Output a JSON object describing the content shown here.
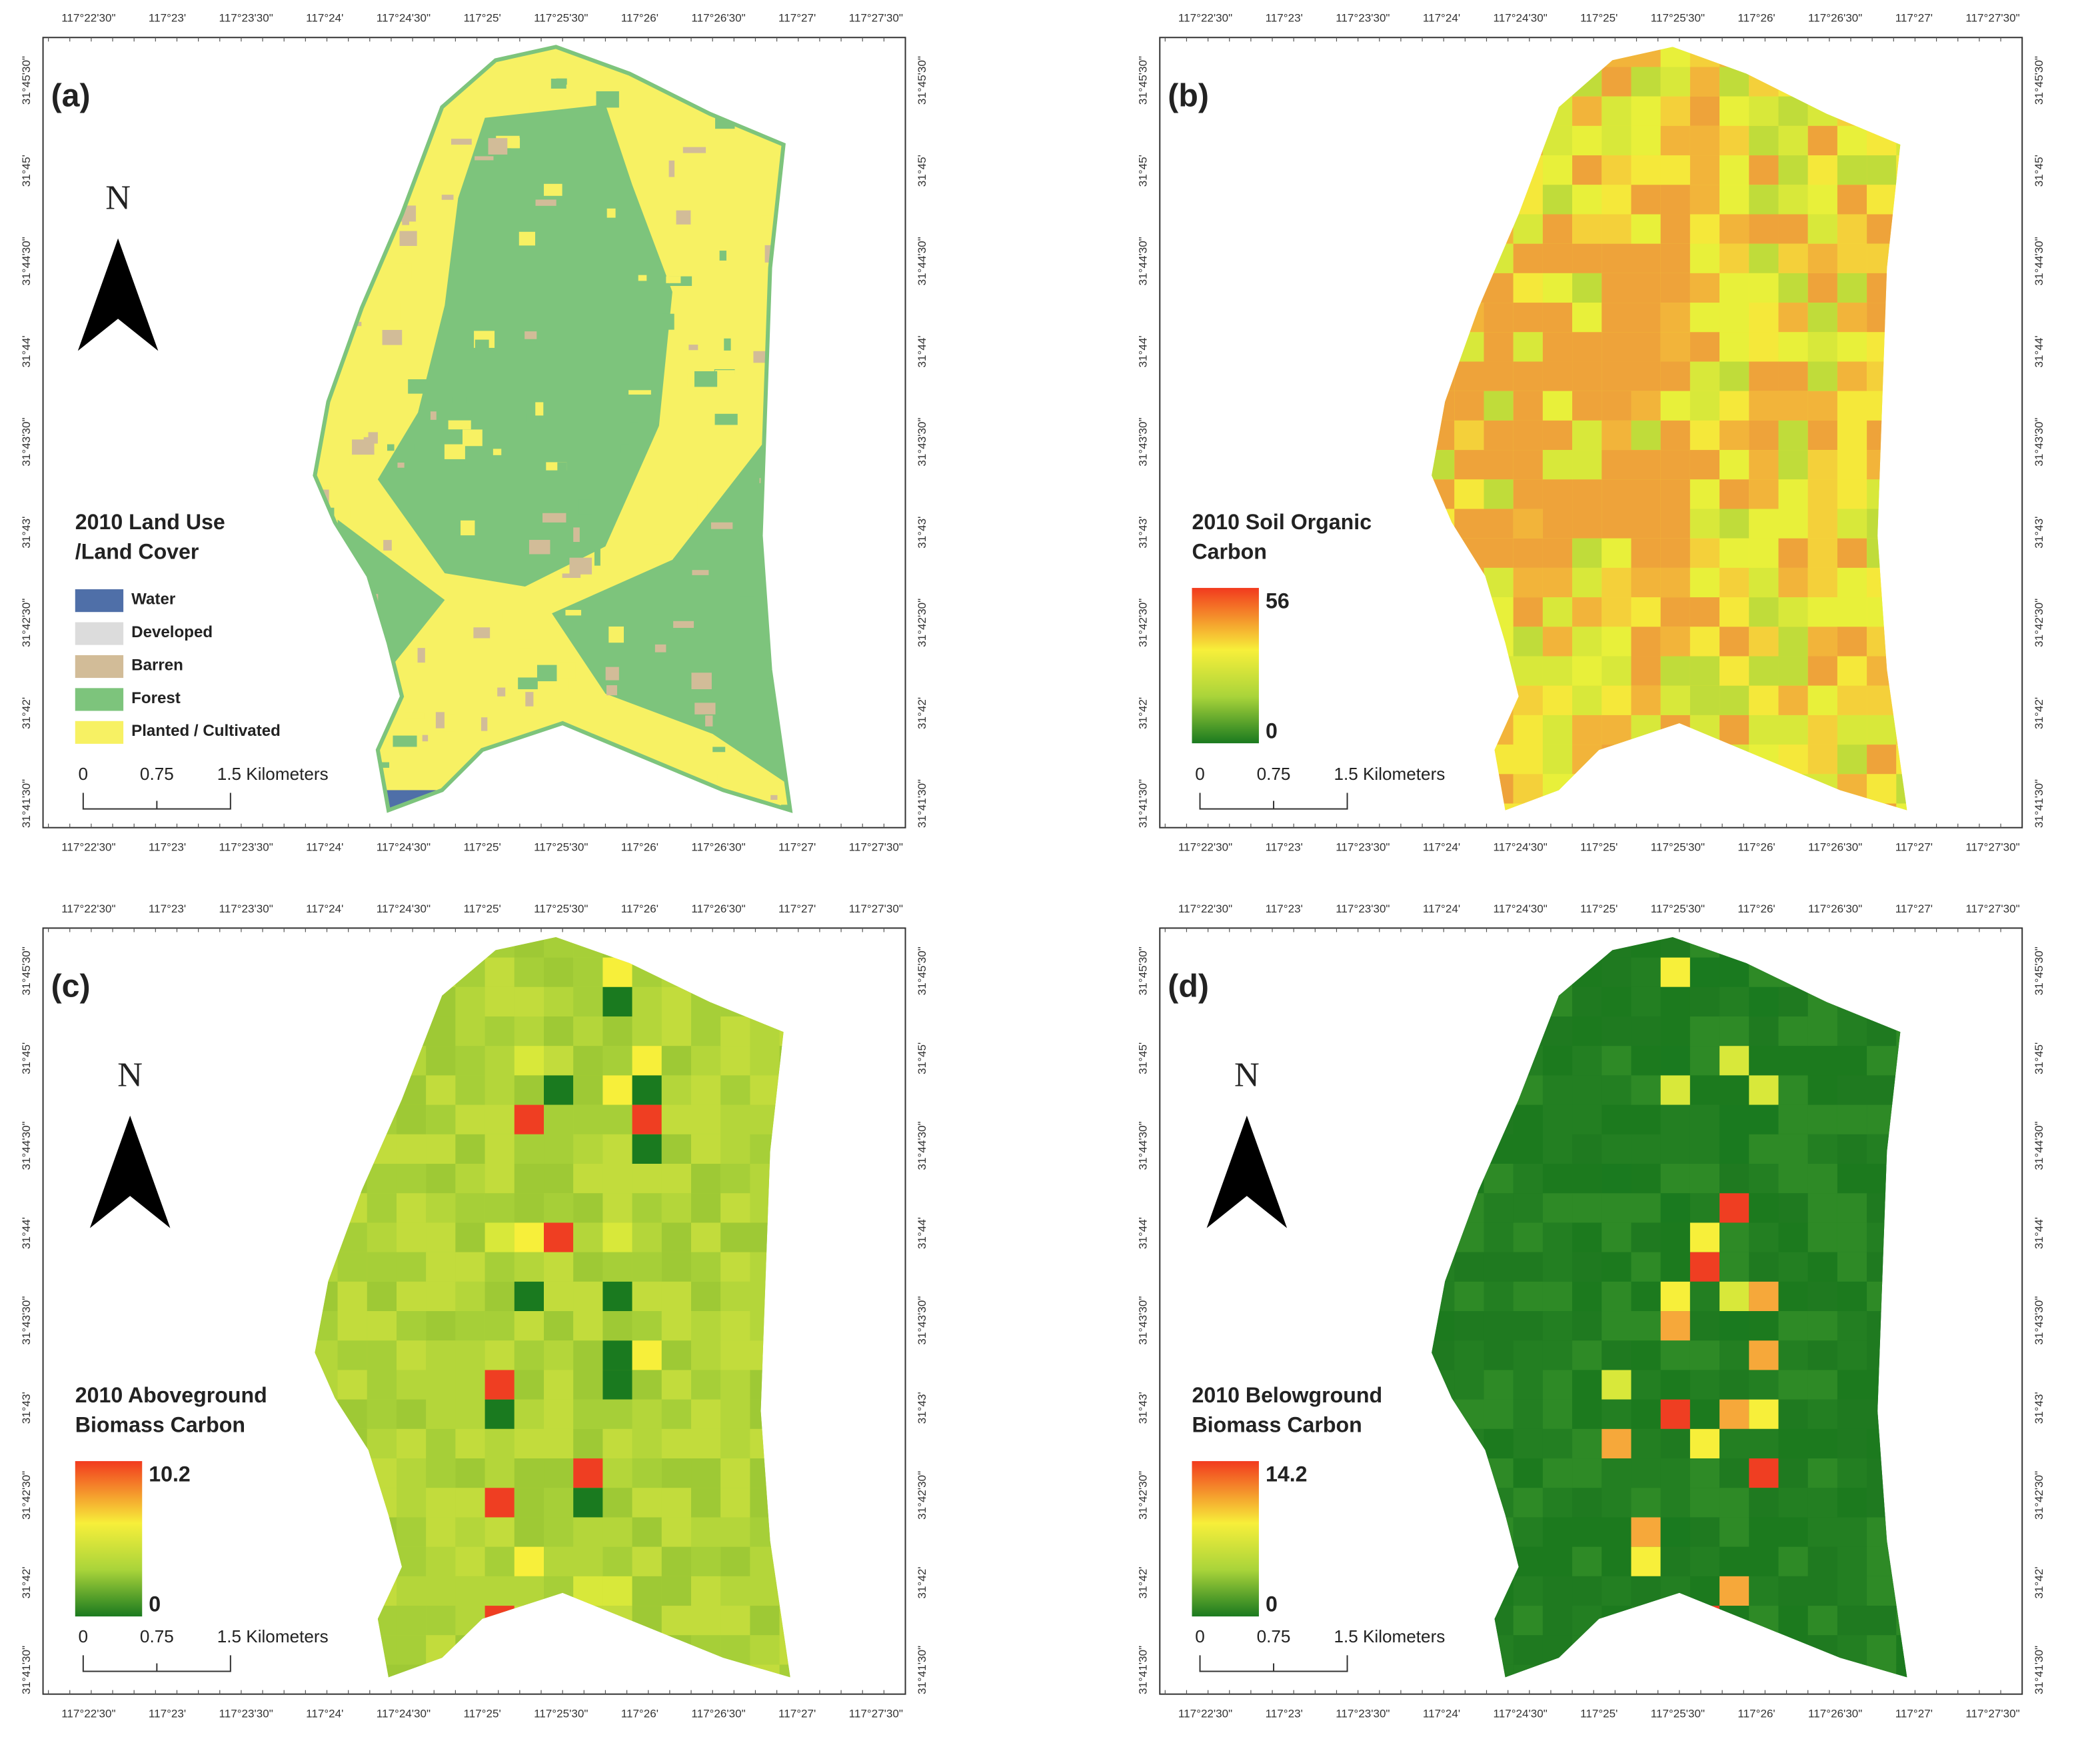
{
  "x_ticks": [
    "117°22'30\"",
    "117°23'",
    "117°23'30\"",
    "117°24'",
    "117°24'30\"",
    "117°25'",
    "117°25'30\"",
    "117°26'",
    "117°26'30\"",
    "117°27'",
    "117°27'30\""
  ],
  "y_ticks": [
    "31°45'30\"",
    "31°45'",
    "31°44'30\"",
    "31°44'",
    "31°43'30\"",
    "31°43'",
    "31°42'30\"",
    "31°42'",
    "31°41'30\""
  ],
  "scale_bar": [
    "0",
    "0.75",
    "1.5 Kilometers"
  ],
  "panels": [
    {
      "label": "(a)",
      "title": [
        "2010 Land Use",
        "/Land Cover"
      ],
      "north": "N",
      "legend": [
        {
          "name": "Water",
          "color": "#4f6fa8"
        },
        {
          "name": "Developed",
          "color": "#dcdcdc"
        },
        {
          "name": "Barren",
          "color": "#d2bc98"
        },
        {
          "name": "Forest",
          "color": "#7dc47c"
        },
        {
          "name": "Planted / Cultivated",
          "color": "#f7f163"
        }
      ]
    },
    {
      "label": "(b)",
      "title": [
        "2010 Soil Organic",
        "Carbon"
      ],
      "colorbar": {
        "max": 56,
        "min": 0
      }
    },
    {
      "label": "(c)",
      "title": [
        "2010 Aboveground",
        "Biomass Carbon"
      ],
      "north": "N",
      "colorbar": {
        "max": 10.2,
        "min": 0
      }
    },
    {
      "label": "(d)",
      "title": [
        "2010 Belowground",
        "Biomass Carbon"
      ],
      "north": "N",
      "colorbar": {
        "max": 14.2,
        "min": 0
      }
    }
  ]
}
